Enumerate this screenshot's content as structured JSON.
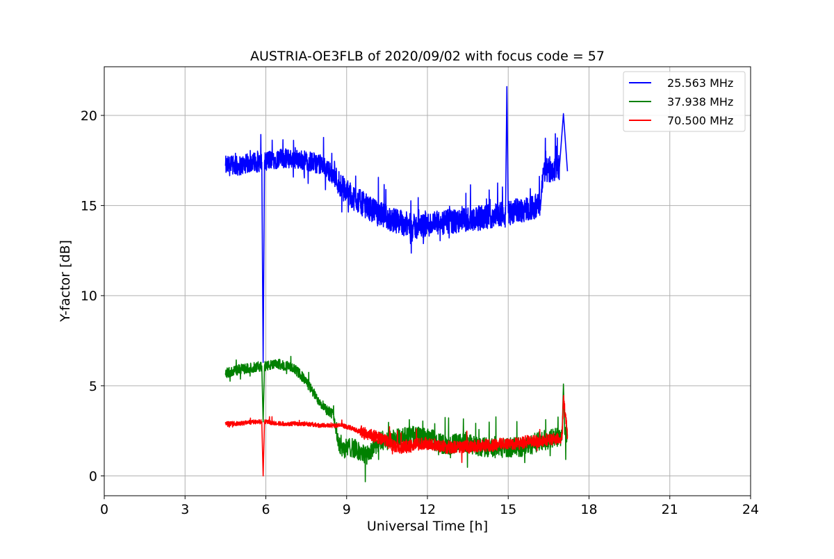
{
  "chart_data": {
    "type": "line",
    "title": "AUSTRIA-OE3FLB of 2020/09/02 with focus code = 57",
    "xlabel": "Universal Time [h]",
    "ylabel": "Y-factor [dB]",
    "xlim": [
      0,
      24
    ],
    "ylim": [
      -1.1,
      22.7
    ],
    "x_ticks": [
      0,
      3,
      6,
      9,
      12,
      15,
      18,
      21,
      24
    ],
    "y_ticks": [
      0,
      5,
      10,
      15,
      20
    ],
    "grid": true,
    "legend_position": "top-right",
    "series": [
      {
        "name": "25.563 MHz",
        "color": "#0000ff",
        "x": [
          4.5,
          5.0,
          5.5,
          5.85,
          5.9,
          5.95,
          6.0,
          6.5,
          7.0,
          7.5,
          8.0,
          8.3,
          8.6,
          8.9,
          9.2,
          9.5,
          9.8,
          10.1,
          10.4,
          10.7,
          11.0,
          11.3,
          11.6,
          11.9,
          12.2,
          12.5,
          12.8,
          13.1,
          13.4,
          13.7,
          14.0,
          14.3,
          14.6,
          14.9,
          14.95,
          15.0,
          15.3,
          15.6,
          15.9,
          16.2,
          16.3,
          16.6,
          16.9,
          17.05,
          17.2
        ],
        "y": [
          17.2,
          17.2,
          17.4,
          17.4,
          6.3,
          17.4,
          17.5,
          17.6,
          17.6,
          17.5,
          17.3,
          17.0,
          16.5,
          15.9,
          15.5,
          15.2,
          14.9,
          14.6,
          14.4,
          14.2,
          14.1,
          13.9,
          13.8,
          13.9,
          14.0,
          14.0,
          14.1,
          14.1,
          14.2,
          14.3,
          14.3,
          14.4,
          14.5,
          14.5,
          21.6,
          14.6,
          14.7,
          14.8,
          14.9,
          15.0,
          16.9,
          17.0,
          17.1,
          20.1,
          16.9
        ]
      },
      {
        "name": "37.938 MHz",
        "color": "#008000",
        "x": [
          4.5,
          5.0,
          5.5,
          5.85,
          5.9,
          5.95,
          6.0,
          6.5,
          7.0,
          7.3,
          7.6,
          7.9,
          8.2,
          8.5,
          8.7,
          8.9,
          9.2,
          9.5,
          9.8,
          10.1,
          10.4,
          10.7,
          11.0,
          11.3,
          11.6,
          11.9,
          12.2,
          12.5,
          12.8,
          13.1,
          13.4,
          13.7,
          14.0,
          14.3,
          14.6,
          14.9,
          15.2,
          15.5,
          15.8,
          16.1,
          16.4,
          16.7,
          17.0,
          17.05,
          17.1,
          17.2
        ],
        "y": [
          5.7,
          5.9,
          6.0,
          6.1,
          3.0,
          6.1,
          6.1,
          6.2,
          6.0,
          5.6,
          5.0,
          4.3,
          3.8,
          3.4,
          1.9,
          1.5,
          1.6,
          1.3,
          1.1,
          1.8,
          2.0,
          2.0,
          2.1,
          2.2,
          2.2,
          2.1,
          2.0,
          1.8,
          1.7,
          1.8,
          1.9,
          1.7,
          1.6,
          1.6,
          1.5,
          1.6,
          1.6,
          1.6,
          1.7,
          1.9,
          2.0,
          2.1,
          2.2,
          5.1,
          2.3,
          2.3
        ]
      },
      {
        "name": "70.500 MHz",
        "color": "#ff0000",
        "x": [
          4.5,
          5.0,
          5.5,
          5.85,
          5.9,
          5.95,
          6.0,
          6.5,
          7.0,
          7.5,
          8.0,
          8.5,
          8.8,
          9.1,
          9.4,
          9.7,
          10.0,
          10.3,
          10.6,
          10.9,
          11.2,
          11.5,
          11.8,
          12.1,
          12.4,
          12.7,
          13.0,
          13.3,
          13.6,
          13.9,
          14.2,
          14.5,
          14.8,
          15.1,
          15.4,
          15.7,
          16.0,
          16.3,
          16.6,
          16.9,
          17.0,
          17.05,
          17.2
        ],
        "y": [
          2.9,
          2.9,
          3.0,
          3.0,
          0.0,
          3.0,
          3.0,
          2.9,
          2.9,
          2.9,
          2.8,
          2.8,
          2.8,
          2.7,
          2.5,
          2.4,
          2.2,
          2.1,
          1.8,
          1.6,
          1.6,
          1.7,
          1.8,
          1.8,
          1.7,
          1.6,
          1.6,
          1.6,
          1.6,
          1.7,
          1.7,
          1.7,
          1.8,
          1.8,
          1.8,
          1.9,
          1.9,
          2.0,
          2.0,
          2.1,
          2.1,
          4.3,
          2.2
        ]
      }
    ]
  }
}
